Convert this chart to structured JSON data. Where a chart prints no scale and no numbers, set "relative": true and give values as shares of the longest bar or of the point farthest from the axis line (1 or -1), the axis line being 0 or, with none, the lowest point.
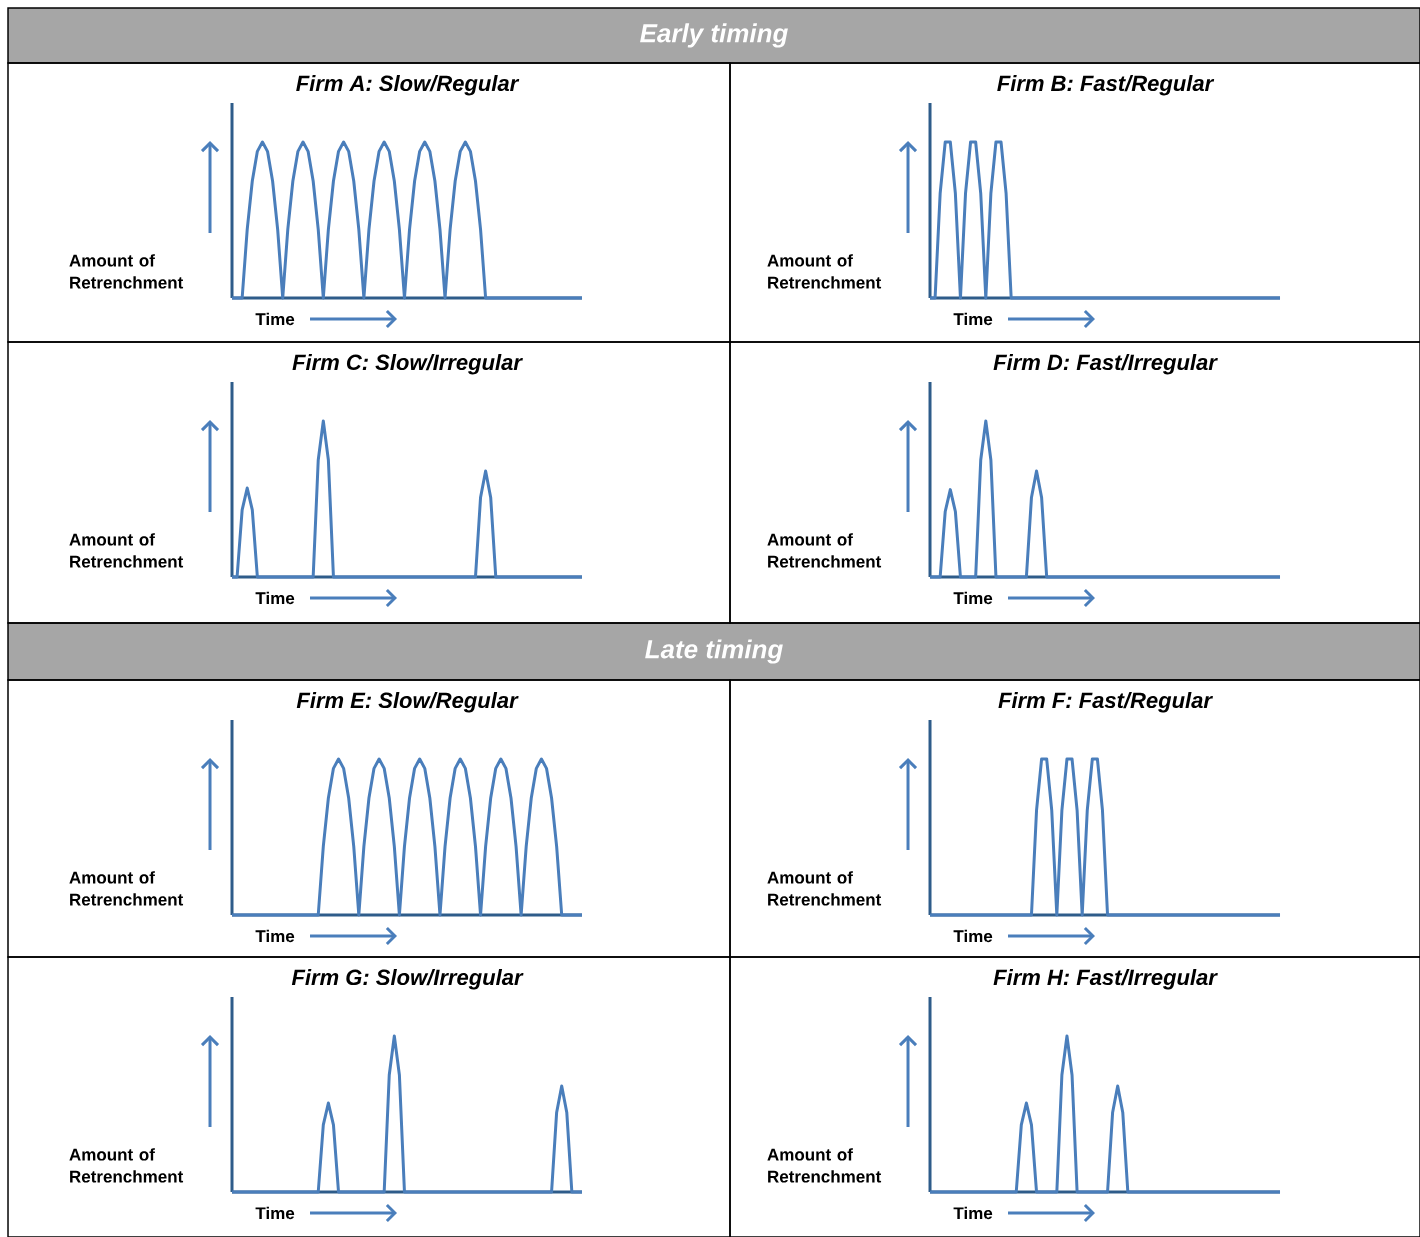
{
  "chart_data": [
    {
      "type": "other",
      "title": "Early timing"
    },
    {
      "type": "line",
      "title": "Firm A: Slow/Regular",
      "xlabel": "Time",
      "ylabel": "Amount of Retrenchment",
      "relative": true,
      "color": "#4a7ebb",
      "categories": [
        null,
        null,
        null,
        null,
        null,
        null,
        null,
        null,
        null,
        null,
        null,
        null,
        null,
        null,
        null,
        null,
        null,
        null,
        null,
        null,
        null,
        null,
        null,
        null,
        null,
        null,
        null,
        null,
        null,
        null,
        null,
        null,
        null,
        null,
        null,
        null,
        null,
        null,
        null,
        null,
        null,
        null,
        null,
        null,
        null,
        null,
        null,
        null,
        null,
        null,
        null,
        null,
        null,
        null,
        null,
        null,
        null,
        null,
        null,
        null,
        null,
        null,
        null,
        null,
        null,
        null,
        null,
        null,
        null,
        null
      ],
      "values": [
        0,
        0,
        0,
        0.44,
        0.75,
        0.94,
        1,
        0.94,
        0.75,
        0.44,
        0,
        0.44,
        0.75,
        0.94,
        1,
        0.94,
        0.75,
        0.44,
        0,
        0.44,
        0.75,
        0.94,
        1,
        0.94,
        0.75,
        0.44,
        0,
        0.44,
        0.75,
        0.94,
        1,
        0.94,
        0.75,
        0.44,
        0,
        0.44,
        0.75,
        0.94,
        1,
        0.94,
        0.75,
        0.44,
        0,
        0.44,
        0.75,
        0.94,
        1,
        0.94,
        0.75,
        0.44,
        0,
        0,
        0,
        0,
        0,
        0,
        0,
        0,
        0,
        0,
        0,
        0,
        0,
        0,
        0,
        0,
        0,
        0,
        0,
        0
      ]
    },
    {
      "type": "line",
      "title": "Firm B: Fast/Regular",
      "xlabel": "Time",
      "ylabel": "Amount of Retrenchment",
      "relative": true,
      "color": "#4a7ebb",
      "categories": [
        null,
        null,
        null,
        null,
        null,
        null,
        null,
        null,
        null,
        null,
        null,
        null,
        null,
        null,
        null,
        null,
        null,
        null,
        null,
        null,
        null,
        null,
        null,
        null,
        null,
        null,
        null,
        null,
        null,
        null,
        null,
        null,
        null,
        null,
        null,
        null,
        null,
        null,
        null,
        null,
        null,
        null,
        null,
        null,
        null,
        null,
        null,
        null,
        null,
        null,
        null,
        null,
        null,
        null,
        null,
        null,
        null,
        null,
        null,
        null,
        null,
        null,
        null,
        null,
        null,
        null,
        null,
        null,
        null,
        null
      ],
      "values": [
        0,
        0,
        0.67,
        1,
        1,
        0.67,
        0,
        0.67,
        1,
        1,
        0.67,
        0,
        0.67,
        1,
        1,
        0.67,
        0,
        0,
        0,
        0,
        0,
        0,
        0,
        0,
        0,
        0,
        0,
        0,
        0,
        0,
        0,
        0,
        0,
        0,
        0,
        0,
        0,
        0,
        0,
        0,
        0,
        0,
        0,
        0,
        0,
        0,
        0,
        0,
        0,
        0,
        0,
        0,
        0,
        0,
        0,
        0,
        0,
        0,
        0,
        0,
        0,
        0,
        0,
        0,
        0,
        0,
        0,
        0,
        0,
        0
      ]
    },
    {
      "type": "line",
      "title": "Firm C: Slow/Irregular",
      "xlabel": "Time",
      "ylabel": "Amount of Retrenchment",
      "relative": true,
      "color": "#4a7ebb",
      "categories": [
        null,
        null,
        null,
        null,
        null,
        null,
        null,
        null,
        null,
        null,
        null,
        null,
        null,
        null,
        null,
        null,
        null,
        null,
        null,
        null,
        null,
        null,
        null,
        null,
        null,
        null,
        null,
        null,
        null,
        null,
        null,
        null,
        null,
        null,
        null,
        null,
        null,
        null,
        null,
        null,
        null,
        null,
        null,
        null,
        null,
        null,
        null,
        null,
        null,
        null,
        null,
        null,
        null,
        null,
        null,
        null,
        null,
        null,
        null,
        null,
        null,
        null,
        null,
        null,
        null,
        null,
        null,
        null,
        null,
        null
      ],
      "values": [
        0,
        0,
        0.43,
        0.57,
        0.43,
        0,
        0,
        0,
        0,
        0,
        0,
        0,
        0,
        0,
        0,
        0,
        0,
        0.75,
        1,
        0.75,
        0,
        0,
        0,
        0,
        0,
        0,
        0,
        0,
        0,
        0,
        0,
        0,
        0,
        0,
        0,
        0,
        0,
        0,
        0,
        0,
        0,
        0,
        0,
        0,
        0,
        0,
        0,
        0,
        0,
        0.51,
        0.68,
        0.51,
        0,
        0,
        0,
        0,
        0,
        0,
        0,
        0,
        0,
        0,
        0,
        0,
        0,
        0,
        0,
        0,
        0,
        0
      ]
    },
    {
      "type": "line",
      "title": "Firm D: Fast/Irregular",
      "xlabel": "Time",
      "ylabel": "Amount of Retrenchment",
      "relative": true,
      "color": "#4a7ebb",
      "categories": [
        null,
        null,
        null,
        null,
        null,
        null,
        null,
        null,
        null,
        null,
        null,
        null,
        null,
        null,
        null,
        null,
        null,
        null,
        null,
        null,
        null,
        null,
        null,
        null,
        null,
        null,
        null,
        null,
        null,
        null,
        null,
        null,
        null,
        null,
        null,
        null,
        null,
        null,
        null,
        null,
        null,
        null,
        null,
        null,
        null,
        null,
        null,
        null,
        null,
        null,
        null,
        null,
        null,
        null,
        null,
        null,
        null,
        null,
        null,
        null,
        null,
        null,
        null,
        null,
        null,
        null,
        null,
        null,
        null,
        null
      ],
      "values": [
        0,
        0,
        0,
        0.42,
        0.56,
        0.42,
        0,
        0,
        0,
        0,
        0.75,
        1,
        0.75,
        0,
        0,
        0,
        0,
        0,
        0,
        0,
        0.51,
        0.68,
        0.51,
        0,
        0,
        0,
        0,
        0,
        0,
        0,
        0,
        0,
        0,
        0,
        0,
        0,
        0,
        0,
        0,
        0,
        0,
        0,
        0,
        0,
        0,
        0,
        0,
        0,
        0,
        0,
        0,
        0,
        0,
        0,
        0,
        0,
        0,
        0,
        0,
        0,
        0,
        0,
        0,
        0,
        0,
        0,
        0,
        0,
        0,
        0
      ]
    },
    {
      "type": "other",
      "title": "Late timing"
    },
    {
      "type": "line",
      "title": "Firm E: Slow/Regular",
      "xlabel": "Time",
      "ylabel": "Amount of Retrenchment",
      "relative": true,
      "color": "#4a7ebb",
      "categories": [
        null,
        null,
        null,
        null,
        null,
        null,
        null,
        null,
        null,
        null,
        null,
        null,
        null,
        null,
        null,
        null,
        null,
        null,
        null,
        null,
        null,
        null,
        null,
        null,
        null,
        null,
        null,
        null,
        null,
        null,
        null,
        null,
        null,
        null,
        null,
        null,
        null,
        null,
        null,
        null,
        null,
        null,
        null,
        null,
        null,
        null,
        null,
        null,
        null,
        null,
        null,
        null,
        null,
        null,
        null,
        null,
        null,
        null,
        null,
        null,
        null,
        null,
        null,
        null,
        null,
        null,
        null,
        null,
        null,
        null
      ],
      "values": [
        0,
        0,
        0,
        0,
        0,
        0,
        0,
        0,
        0,
        0,
        0,
        0,
        0,
        0,
        0,
        0,
        0,
        0,
        0.44,
        0.75,
        0.94,
        1,
        0.94,
        0.75,
        0.44,
        0,
        0.44,
        0.75,
        0.94,
        1,
        0.94,
        0.75,
        0.44,
        0,
        0.44,
        0.75,
        0.94,
        1,
        0.94,
        0.75,
        0.44,
        0,
        0.44,
        0.75,
        0.94,
        1,
        0.94,
        0.75,
        0.44,
        0,
        0.44,
        0.75,
        0.94,
        1,
        0.94,
        0.75,
        0.44,
        0,
        0.44,
        0.75,
        0.94,
        1,
        0.94,
        0.75,
        0.44,
        0,
        0,
        0,
        0,
        0
      ]
    },
    {
      "type": "line",
      "title": "Firm F: Fast/Regular",
      "xlabel": "Time",
      "ylabel": "Amount of Retrenchment",
      "relative": true,
      "color": "#4a7ebb",
      "categories": [
        null,
        null,
        null,
        null,
        null,
        null,
        null,
        null,
        null,
        null,
        null,
        null,
        null,
        null,
        null,
        null,
        null,
        null,
        null,
        null,
        null,
        null,
        null,
        null,
        null,
        null,
        null,
        null,
        null,
        null,
        null,
        null,
        null,
        null,
        null,
        null,
        null,
        null,
        null,
        null,
        null,
        null,
        null,
        null,
        null,
        null,
        null,
        null,
        null,
        null,
        null,
        null,
        null,
        null,
        null,
        null,
        null,
        null,
        null,
        null,
        null,
        null,
        null,
        null,
        null,
        null,
        null,
        null,
        null,
        null
      ],
      "values": [
        0,
        0,
        0,
        0,
        0,
        0,
        0,
        0,
        0,
        0,
        0,
        0,
        0,
        0,
        0,
        0,
        0,
        0,
        0,
        0,
        0,
        0.67,
        1,
        1,
        0.67,
        0,
        0.67,
        1,
        1,
        0.67,
        0,
        0.67,
        1,
        1,
        0.67,
        0,
        0,
        0,
        0,
        0,
        0,
        0,
        0,
        0,
        0,
        0,
        0,
        0,
        0,
        0,
        0,
        0,
        0,
        0,
        0,
        0,
        0,
        0,
        0,
        0,
        0,
        0,
        0,
        0,
        0,
        0,
        0,
        0,
        0,
        0
      ]
    },
    {
      "type": "line",
      "title": "Firm G: Slow/Irregular",
      "xlabel": "Time",
      "ylabel": "Amount of Retrenchment",
      "relative": true,
      "color": "#4a7ebb",
      "categories": [
        null,
        null,
        null,
        null,
        null,
        null,
        null,
        null,
        null,
        null,
        null,
        null,
        null,
        null,
        null,
        null,
        null,
        null,
        null,
        null,
        null,
        null,
        null,
        null,
        null,
        null,
        null,
        null,
        null,
        null,
        null,
        null,
        null,
        null,
        null,
        null,
        null,
        null,
        null,
        null,
        null,
        null,
        null,
        null,
        null,
        null,
        null,
        null,
        null,
        null,
        null,
        null,
        null,
        null,
        null,
        null,
        null,
        null,
        null,
        null,
        null,
        null,
        null,
        null,
        null,
        null,
        null,
        null,
        null,
        null
      ],
      "values": [
        0,
        0,
        0,
        0,
        0,
        0,
        0,
        0,
        0,
        0,
        0,
        0,
        0,
        0,
        0,
        0,
        0,
        0,
        0.43,
        0.57,
        0.43,
        0,
        0,
        0,
        0,
        0,
        0,
        0,
        0,
        0,
        0,
        0.75,
        1,
        0.75,
        0,
        0,
        0,
        0,
        0,
        0,
        0,
        0,
        0,
        0,
        0,
        0,
        0,
        0,
        0,
        0,
        0,
        0,
        0,
        0,
        0,
        0,
        0,
        0,
        0,
        0,
        0,
        0,
        0,
        0,
        0.51,
        0.68,
        0.51,
        0,
        0,
        0
      ]
    },
    {
      "type": "line",
      "title": "Firm H: Fast/Irregular",
      "xlabel": "Time",
      "ylabel": "Amount of Retrenchment",
      "relative": true,
      "color": "#4a7ebb",
      "categories": [
        null,
        null,
        null,
        null,
        null,
        null,
        null,
        null,
        null,
        null,
        null,
        null,
        null,
        null,
        null,
        null,
        null,
        null,
        null,
        null,
        null,
        null,
        null,
        null,
        null,
        null,
        null,
        null,
        null,
        null,
        null,
        null,
        null,
        null,
        null,
        null,
        null,
        null,
        null,
        null,
        null,
        null,
        null,
        null,
        null,
        null,
        null,
        null,
        null,
        null,
        null,
        null,
        null,
        null,
        null,
        null,
        null,
        null,
        null,
        null,
        null,
        null,
        null,
        null,
        null,
        null,
        null,
        null,
        null,
        null
      ],
      "values": [
        0,
        0,
        0,
        0,
        0,
        0,
        0,
        0,
        0,
        0,
        0,
        0,
        0,
        0,
        0,
        0,
        0,
        0,
        0.43,
        0.57,
        0.43,
        0,
        0,
        0,
        0,
        0,
        0.75,
        1,
        0.75,
        0,
        0,
        0,
        0,
        0,
        0,
        0,
        0.51,
        0.68,
        0.51,
        0,
        0,
        0,
        0,
        0,
        0,
        0,
        0,
        0,
        0,
        0,
        0,
        0,
        0,
        0,
        0,
        0,
        0,
        0,
        0,
        0,
        0,
        0,
        0,
        0,
        0,
        0,
        0,
        0,
        0,
        0
      ]
    }
  ]
}
